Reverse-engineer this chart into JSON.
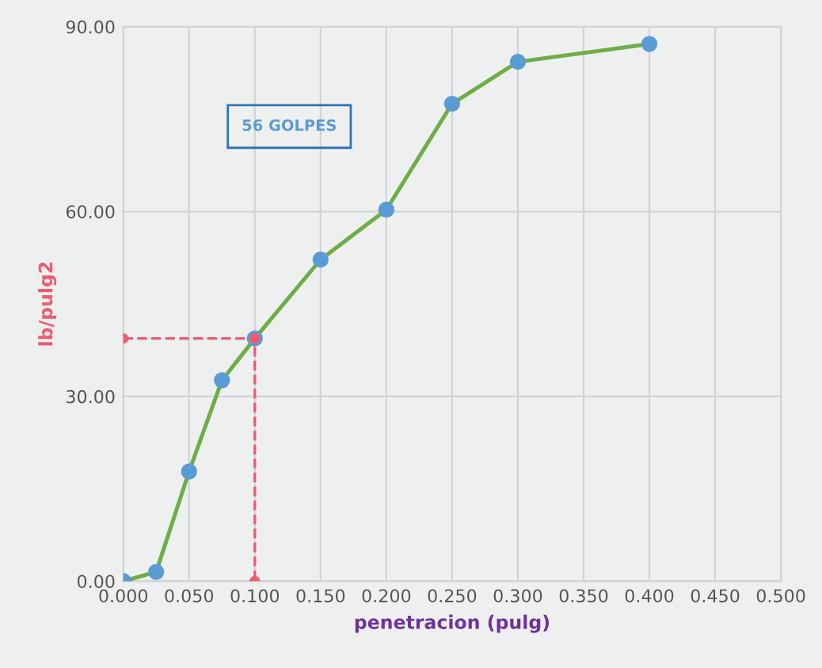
{
  "chart_data": {
    "type": "line",
    "xlabel": "penetracion (pulg)",
    "ylabel": "lb/pulg2",
    "annotations": [
      "56 GOLPES"
    ],
    "series": [
      {
        "color": "#70ad47",
        "colors": [
          "#5b9bd5",
          "#5b9bd5",
          "#5b9bd5",
          "#5b9bd5",
          "#5b9bd5",
          "#5b9bd5",
          "#5b9bd5",
          "#5b9bd5",
          "#5b9bd5",
          "#5b9bd5"
        ],
        "marker": "circle",
        "line_style": "solid",
        "x": [
          0,
          0.025,
          0.05,
          0.075,
          0.1,
          0.15,
          0.2,
          0.25,
          0.3,
          0.4
        ],
        "values": [
          0,
          1.5,
          17.8,
          32.6,
          39.4,
          52.2,
          60.3,
          77.5,
          84.3,
          87.2
        ]
      },
      {
        "color": "#f05a6e",
        "marker": "circle",
        "line_style": "dashed",
        "x": [
          0,
          0.1,
          0.1
        ],
        "values": [
          39.4,
          39.4,
          0
        ]
      }
    ],
    "xlim": [
      0,
      0.5
    ],
    "ylim": [
      0,
      90
    ],
    "xticks": [
      {
        "value": 0,
        "label": "0.000"
      },
      {
        "value": 0.05,
        "label": "0.050"
      },
      {
        "value": 0.1,
        "label": "0.100"
      },
      {
        "value": 0.15,
        "label": "0.150"
      },
      {
        "value": 0.2,
        "label": "0.200"
      },
      {
        "value": 0.25,
        "label": "0.250"
      },
      {
        "value": 0.3,
        "label": "0.300"
      },
      {
        "value": 0.35,
        "label": "0.350"
      },
      {
        "value": 0.4,
        "label": "0.400"
      },
      {
        "value": 0.45,
        "label": "0.450"
      },
      {
        "value": 0.5,
        "label": "0.500"
      }
    ],
    "yticks": [
      {
        "value": 0,
        "label": "0.00"
      },
      {
        "value": 30,
        "label": "30.00"
      },
      {
        "value": 60,
        "label": "60.00"
      },
      {
        "value": 90,
        "label": "90.00"
      }
    ],
    "grid": true,
    "legend": false
  }
}
